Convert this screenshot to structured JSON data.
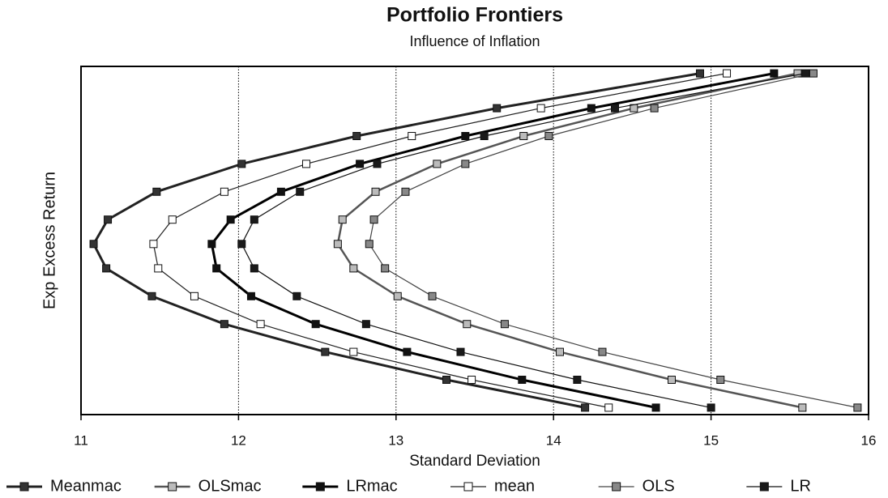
{
  "chart_data": {
    "type": "line",
    "title": "Portfolio Frontiers",
    "subtitle": "Influence of Inflation",
    "x_label": "Standard Deviation",
    "y_label": "Exp Excess Return",
    "xlim": [
      11,
      16
    ],
    "xticks": [
      11,
      12,
      13,
      14,
      15,
      16
    ],
    "ylim": [
      0,
      10
    ],
    "grid": true,
    "legend": "bottom",
    "series": [
      {
        "name": "Meanmac",
        "color": "#333333",
        "line_color": "#222222",
        "line_width": 3,
        "x": [
          14.2,
          13.32,
          12.55,
          11.91,
          11.45,
          11.16,
          11.08,
          11.17,
          11.48,
          12.02,
          12.75,
          13.64,
          14.93
        ],
        "y": [
          0.2,
          1.0,
          1.8,
          2.6,
          3.4,
          4.2,
          4.9,
          5.6,
          6.4,
          7.2,
          8.0,
          8.8,
          9.8
        ]
      },
      {
        "name": "OLSmac",
        "color": "#bbbbbb",
        "line_color": "#555555",
        "line_width": 2.5,
        "x": [
          15.58,
          14.75,
          14.04,
          13.45,
          13.01,
          12.73,
          12.63,
          12.66,
          12.87,
          13.26,
          13.81,
          14.51,
          15.55
        ],
        "y": [
          0.2,
          1.0,
          1.8,
          2.6,
          3.4,
          4.2,
          4.9,
          5.6,
          6.4,
          7.2,
          8.0,
          8.8,
          9.8
        ]
      },
      {
        "name": "LRmac",
        "color": "#111111",
        "line_color": "#000000",
        "line_width": 3,
        "x": [
          14.65,
          13.8,
          13.07,
          12.49,
          12.08,
          11.86,
          11.83,
          11.95,
          12.27,
          12.77,
          13.44,
          14.24,
          15.4
        ],
        "y": [
          0.2,
          1.0,
          1.8,
          2.6,
          3.4,
          4.2,
          4.9,
          5.6,
          6.4,
          7.2,
          8.0,
          8.8,
          9.8
        ]
      },
      {
        "name": "mean",
        "color": "#ffffff",
        "line_color": "#222222",
        "line_width": 1.2,
        "x": [
          14.35,
          13.48,
          12.73,
          12.14,
          11.72,
          11.49,
          11.46,
          11.58,
          11.91,
          12.43,
          13.1,
          13.92,
          15.1
        ],
        "y": [
          0.2,
          1.0,
          1.8,
          2.6,
          3.4,
          4.2,
          4.9,
          5.6,
          6.4,
          7.2,
          8.0,
          8.8,
          9.8
        ]
      },
      {
        "name": "OLS",
        "color": "#888888",
        "line_color": "#444444",
        "line_width": 1.2,
        "x": [
          15.93,
          15.06,
          14.31,
          13.69,
          13.23,
          12.93,
          12.83,
          12.86,
          13.06,
          13.44,
          13.97,
          14.64,
          15.65
        ],
        "y": [
          0.2,
          1.0,
          1.8,
          2.6,
          3.4,
          4.2,
          4.9,
          5.6,
          6.4,
          7.2,
          8.0,
          8.8,
          9.8
        ]
      },
      {
        "name": "LR",
        "color": "#1a1a1a",
        "line_color": "#111111",
        "line_width": 1.2,
        "x": [
          15.0,
          14.15,
          13.41,
          12.81,
          12.37,
          12.1,
          12.02,
          12.1,
          12.39,
          12.88,
          13.56,
          14.39,
          15.6
        ],
        "y": [
          0.2,
          1.0,
          1.8,
          2.6,
          3.4,
          4.2,
          4.9,
          5.6,
          6.4,
          7.2,
          8.0,
          8.8,
          9.8
        ]
      }
    ]
  }
}
